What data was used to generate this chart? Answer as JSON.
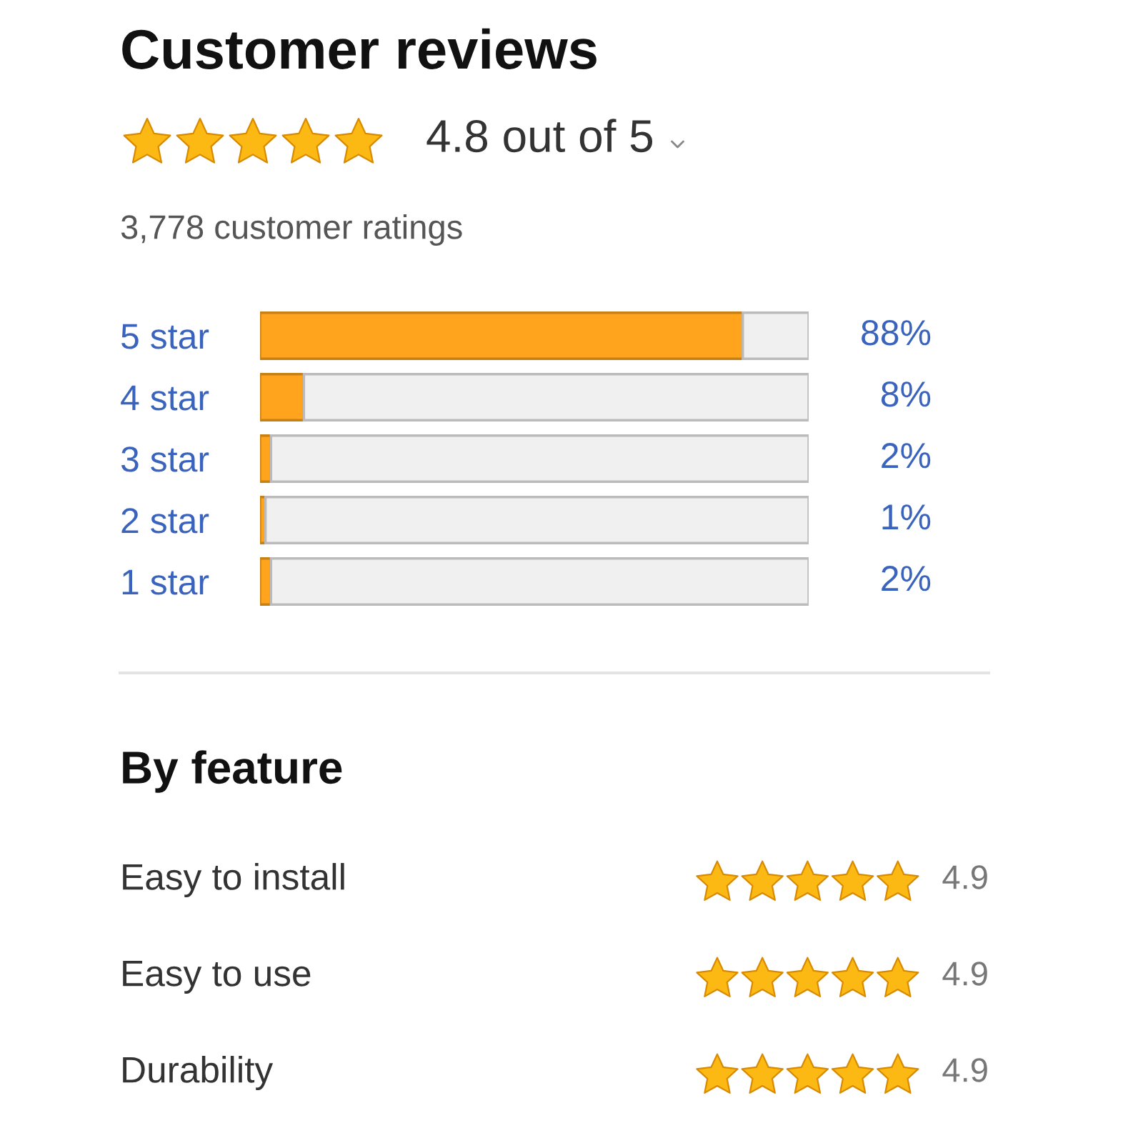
{
  "chart_data": [
    {
      "type": "bar",
      "orientation": "horizontal",
      "stacked": true,
      "title": "Customer reviews",
      "subtitle": "4.8 out of 5",
      "annotations": [
        "3,778 customer ratings"
      ],
      "categories": [
        "5 star",
        "4 star",
        "3 star",
        "2 star",
        "1 star"
      ],
      "series": [
        {
          "color": "#ffa41c",
          "values": [
            88,
            8,
            2,
            1,
            2
          ],
          "value_labels": [
            "88%",
            "8%",
            "2%",
            "1%",
            "2%"
          ]
        },
        {
          "color": "#f0f0f0",
          "values": [
            12,
            92,
            98,
            99,
            98
          ]
        }
      ],
      "xlim": [
        0,
        100
      ],
      "tick_labels": "y"
    },
    {
      "type": "other",
      "title": "By feature",
      "annotations": [
        "Easy to install",
        "4.9",
        "Easy to use",
        "4.9",
        "Durability",
        "4.9"
      ]
    }
  ]
}
